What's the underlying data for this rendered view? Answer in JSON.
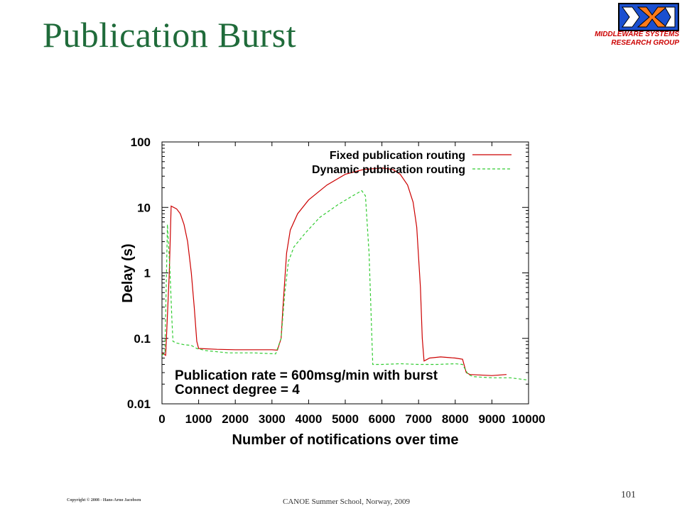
{
  "slide": {
    "title": "Publication Burst",
    "logo_line1": "MIDDLEWARE SYSTEMS",
    "logo_line2": "RESEARCH GROUP",
    "footer_copyright": "Copyright © 2008 - Hans-Arno Jacobsen",
    "footer_event": "CANOE Summer School, Norway, 2009",
    "page_number": "101"
  },
  "colors": {
    "title": "#1f6b3a",
    "logo_text": "#cc0000",
    "fixed_series": "#cc0000",
    "dynamic_series": "#33cc33"
  },
  "chart_data": {
    "type": "line",
    "xlabel": "Number of notifications over time",
    "ylabel": "Delay (s)",
    "xlim": [
      0,
      10000
    ],
    "ylim": [
      0.01,
      100
    ],
    "yscale": "log",
    "xticks": [
      0,
      1000,
      2000,
      3000,
      4000,
      5000,
      6000,
      7000,
      8000,
      9000,
      10000
    ],
    "yticks": [
      0.01,
      0.1,
      1,
      10,
      100
    ],
    "ytick_labels": [
      "0.01",
      "0.1",
      "1",
      "10",
      "100"
    ],
    "legend_position": "top-right",
    "annotations": [
      "Publication rate = 600msg/min with burst",
      "Connect degree = 4"
    ],
    "series": [
      {
        "name": "Fixed publication routing",
        "style": "solid",
        "color": "#cc0000",
        "points": [
          [
            0,
            0.06
          ],
          [
            100,
            0.055
          ],
          [
            200,
            1.0
          ],
          [
            250,
            10.5
          ],
          [
            400,
            9.5
          ],
          [
            500,
            8.0
          ],
          [
            600,
            5.5
          ],
          [
            700,
            3.0
          ],
          [
            800,
            1.0
          ],
          [
            880,
            0.3
          ],
          [
            950,
            0.09
          ],
          [
            1000,
            0.07
          ],
          [
            1500,
            0.068
          ],
          [
            2000,
            0.067
          ],
          [
            2500,
            0.067
          ],
          [
            3000,
            0.067
          ],
          [
            3150,
            0.066
          ],
          [
            3250,
            0.1
          ],
          [
            3300,
            0.3
          ],
          [
            3400,
            2.0
          ],
          [
            3500,
            4.5
          ],
          [
            3700,
            8.0
          ],
          [
            4000,
            13.0
          ],
          [
            4500,
            22.0
          ],
          [
            5000,
            32.0
          ],
          [
            5500,
            38.0
          ],
          [
            6000,
            40.0
          ],
          [
            6300,
            38.0
          ],
          [
            6500,
            32.0
          ],
          [
            6700,
            22.0
          ],
          [
            6850,
            12.0
          ],
          [
            6950,
            5.0
          ],
          [
            7050,
            0.6
          ],
          [
            7100,
            0.1
          ],
          [
            7150,
            0.045
          ],
          [
            7300,
            0.05
          ],
          [
            7600,
            0.052
          ],
          [
            8000,
            0.05
          ],
          [
            8200,
            0.048
          ],
          [
            8300,
            0.03
          ],
          [
            8400,
            0.028
          ],
          [
            9000,
            0.027
          ],
          [
            9400,
            0.028
          ]
        ]
      },
      {
        "name": "Dynamic publication routing",
        "style": "dashed",
        "color": "#33cc33",
        "points": [
          [
            0,
            0.055
          ],
          [
            80,
            0.06
          ],
          [
            150,
            5.5
          ],
          [
            220,
            1.0
          ],
          [
            270,
            0.2
          ],
          [
            300,
            0.09
          ],
          [
            400,
            0.085
          ],
          [
            600,
            0.08
          ],
          [
            800,
            0.078
          ],
          [
            950,
            0.07
          ],
          [
            1200,
            0.065
          ],
          [
            1800,
            0.06
          ],
          [
            2500,
            0.06
          ],
          [
            3100,
            0.058
          ],
          [
            3250,
            0.1
          ],
          [
            3350,
            0.5
          ],
          [
            3450,
            1.5
          ],
          [
            3600,
            2.5
          ],
          [
            3900,
            4.0
          ],
          [
            4300,
            7.0
          ],
          [
            4800,
            11.0
          ],
          [
            5200,
            15.0
          ],
          [
            5450,
            18.0
          ],
          [
            5550,
            15.0
          ],
          [
            5650,
            2.0
          ],
          [
            5750,
            0.04
          ],
          [
            6000,
            0.04
          ],
          [
            6500,
            0.041
          ],
          [
            7000,
            0.04
          ],
          [
            7500,
            0.04
          ],
          [
            8000,
            0.041
          ],
          [
            8200,
            0.04
          ],
          [
            8350,
            0.028
          ],
          [
            8500,
            0.026
          ],
          [
            9000,
            0.025
          ],
          [
            9500,
            0.025
          ],
          [
            10000,
            0.023
          ]
        ]
      }
    ]
  }
}
